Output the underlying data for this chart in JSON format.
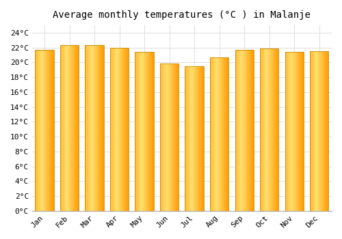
{
  "months": [
    "Jan",
    "Feb",
    "Mar",
    "Apr",
    "May",
    "Jun",
    "Jul",
    "Aug",
    "Sep",
    "Oct",
    "Nov",
    "Dec"
  ],
  "temperatures": [
    21.7,
    22.3,
    22.3,
    22.0,
    21.4,
    19.9,
    19.5,
    20.7,
    21.7,
    21.9,
    21.4,
    21.5
  ],
  "title": "Average monthly temperatures (°C ) in Malanje",
  "ylim": [
    0,
    25
  ],
  "ytick_step": 2,
  "bar_color_left": "#FFD966",
  "bar_color_center": "#FFAA00",
  "bar_color_right": "#FF9900",
  "background_color": "#FFFFFF",
  "grid_color": "#DDDDDD",
  "title_fontsize": 10,
  "tick_fontsize": 8,
  "bar_width": 0.75
}
